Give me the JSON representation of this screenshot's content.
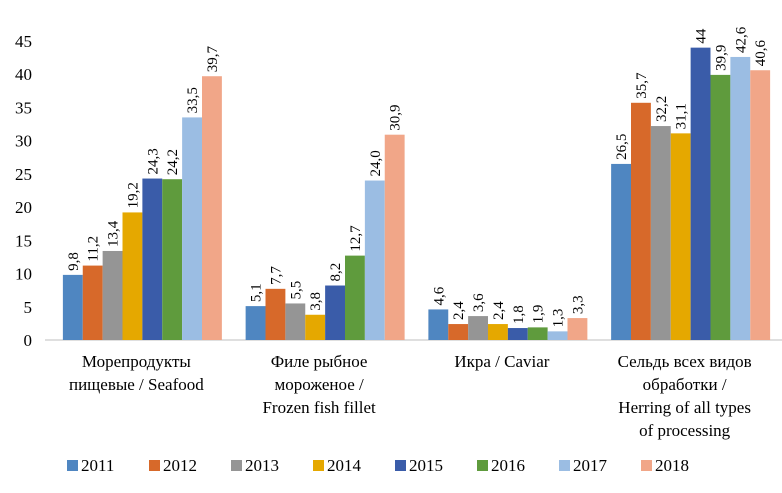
{
  "chart_data": {
    "type": "bar",
    "categories": [
      "Морепродукты\nпищевые / Seafood",
      "Филе рыбное\nмороженое /\nFrozen fish fillet",
      "Икра / Caviar",
      "Сельдь всех видов\nобработки /\nHerring of all types\nof processing"
    ],
    "series": [
      {
        "name": "2011",
        "color": "#4f86c1",
        "values": [
          9.8,
          5.1,
          4.6,
          26.5
        ],
        "value_labels": [
          "9,8",
          "5,1",
          "4,6",
          "26,5"
        ]
      },
      {
        "name": "2012",
        "color": "#d7692a",
        "values": [
          11.2,
          7.7,
          2.4,
          35.7
        ],
        "value_labels": [
          "11,2",
          "7,7",
          "2,4",
          "35,7"
        ]
      },
      {
        "name": "2013",
        "color": "#959595",
        "values": [
          13.4,
          5.5,
          3.6,
          32.2
        ],
        "value_labels": [
          "13,4",
          "5,5",
          "3,6",
          "32,2"
        ]
      },
      {
        "name": "2014",
        "color": "#e5a800",
        "values": [
          19.2,
          3.8,
          2.4,
          31.1
        ],
        "value_labels": [
          "19,2",
          "3,8",
          "2,4",
          "31,1"
        ]
      },
      {
        "name": "2015",
        "color": "#3a5ca9",
        "values": [
          24.3,
          8.2,
          1.8,
          44
        ],
        "value_labels": [
          "24,3",
          "8,2",
          "1,8",
          "44"
        ]
      },
      {
        "name": "2016",
        "color": "#5f9b3d",
        "values": [
          24.2,
          12.7,
          1.9,
          39.9
        ],
        "value_labels": [
          "24,2",
          "12,7",
          "1,9",
          "39,9"
        ]
      },
      {
        "name": "2017",
        "color": "#9bbde3",
        "values": [
          33.5,
          24.0,
          1.3,
          42.6
        ],
        "value_labels": [
          "33,5",
          "24,0",
          "1,3",
          "42,6"
        ]
      },
      {
        "name": "2018",
        "color": "#f1a688",
        "values": [
          39.7,
          30.9,
          3.3,
          40.6
        ],
        "value_labels": [
          "39,7",
          "30,9",
          "3,3",
          "40,6"
        ]
      }
    ],
    "ylim": [
      0,
      45
    ],
    "yticks": [
      0,
      5,
      10,
      15,
      20,
      25,
      30,
      35,
      40,
      45
    ],
    "grid": false,
    "legend": "bottom"
  }
}
